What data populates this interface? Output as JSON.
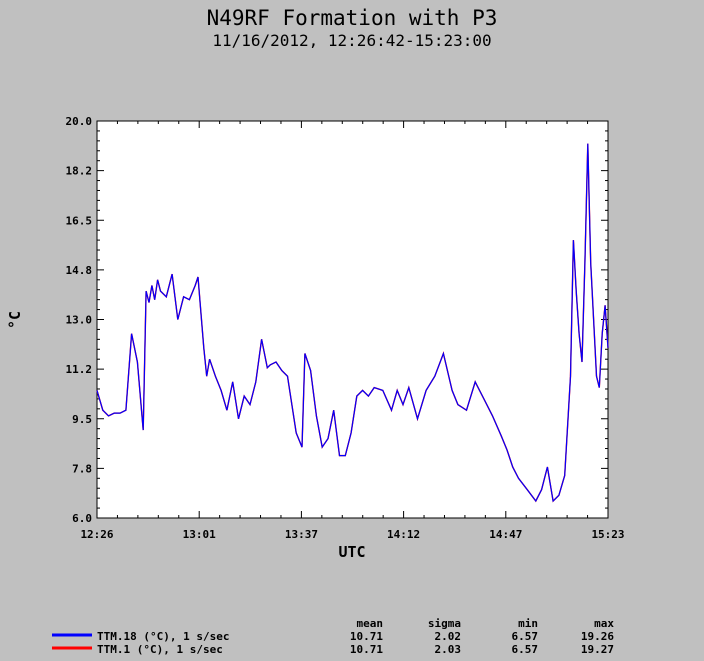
{
  "chart_data": {
    "type": "line",
    "title": "N49RF Formation with P3",
    "subtitle": "11/16/2012, 12:26:42-15:23:00",
    "xlabel": "UTC",
    "ylabel": "°C",
    "xlim": [
      "12:26",
      "15:23"
    ],
    "ylim": [
      6.0,
      20.0
    ],
    "x_ticks": [
      "12:26",
      "13:01",
      "13:37",
      "14:12",
      "14:47",
      "15:23"
    ],
    "y_ticks": [
      "6.0",
      "7.8",
      "9.5",
      "11.2",
      "13.0",
      "14.8",
      "16.5",
      "18.2",
      "20.0"
    ],
    "grid": false,
    "legend_placement": "bottom",
    "stats_headers": [
      "mean",
      "sigma",
      "min",
      "max"
    ],
    "series": [
      {
        "name": "TTM.18 (°C), 1 s/sec",
        "color": "#0000ff",
        "stats": [
          "10.71",
          "2.02",
          "6.57",
          "19.26"
        ],
        "x": [
          "12:26",
          "12:28",
          "12:30",
          "12:32",
          "12:34",
          "12:36",
          "12:38",
          "12:40",
          "12:42",
          "12:43",
          "12:44",
          "12:45",
          "12:46",
          "12:47",
          "12:48",
          "12:50",
          "12:52",
          "12:54",
          "12:56",
          "12:58",
          "13:00",
          "13:01",
          "13:03",
          "13:04",
          "13:05",
          "13:07",
          "13:09",
          "13:11",
          "13:13",
          "13:15",
          "13:17",
          "13:19",
          "13:21",
          "13:23",
          "13:25",
          "13:26",
          "13:28",
          "13:30",
          "13:32",
          "13:35",
          "13:37",
          "13:38",
          "13:40",
          "13:42",
          "13:44",
          "13:46",
          "13:48",
          "13:50",
          "13:52",
          "13:54",
          "13:56",
          "13:58",
          "14:00",
          "14:02",
          "14:05",
          "14:08",
          "14:10",
          "14:12",
          "14:14",
          "14:17",
          "14:20",
          "14:23",
          "14:26",
          "14:29",
          "14:31",
          "14:34",
          "14:37",
          "14:40",
          "14:43",
          "14:46",
          "14:48",
          "14:50",
          "14:52",
          "14:55",
          "14:58",
          "15:00",
          "15:02",
          "15:04",
          "15:06",
          "15:08",
          "15:10",
          "15:11",
          "15:12",
          "15:13",
          "15:14",
          "15:15",
          "15:16",
          "15:17",
          "15:18",
          "15:19",
          "15:20",
          "15:21",
          "15:22",
          "15:23"
        ],
        "y": [
          10.5,
          9.8,
          9.6,
          9.7,
          9.7,
          9.8,
          12.5,
          11.5,
          9.1,
          14.0,
          13.6,
          14.2,
          13.7,
          14.4,
          14.0,
          13.8,
          14.6,
          13.0,
          13.8,
          13.7,
          14.2,
          14.5,
          12.0,
          11.0,
          11.6,
          11.0,
          10.5,
          9.8,
          10.8,
          9.5,
          10.3,
          10.0,
          10.8,
          12.3,
          11.3,
          11.4,
          11.5,
          11.2,
          11.0,
          9.0,
          8.5,
          11.8,
          11.2,
          9.6,
          8.5,
          8.8,
          9.8,
          8.2,
          8.2,
          9.0,
          10.3,
          10.5,
          10.3,
          10.6,
          10.5,
          9.8,
          10.5,
          10.0,
          10.6,
          9.5,
          10.5,
          11.0,
          11.8,
          10.5,
          10.0,
          9.8,
          10.8,
          10.2,
          9.6,
          8.9,
          8.4,
          7.8,
          7.4,
          7.0,
          6.6,
          7.0,
          7.8,
          6.6,
          6.8,
          7.5,
          11.0,
          15.8,
          14.0,
          12.5,
          11.5,
          15.0,
          19.2,
          15.0,
          13.0,
          11.0,
          10.6,
          12.5,
          13.5,
          12.0
        ]
      },
      {
        "name": "TTM.1 (°C), 1 s/sec",
        "color": "#ff0000",
        "stats": [
          "10.71",
          "2.03",
          "6.57",
          "19.27"
        ]
      }
    ]
  }
}
